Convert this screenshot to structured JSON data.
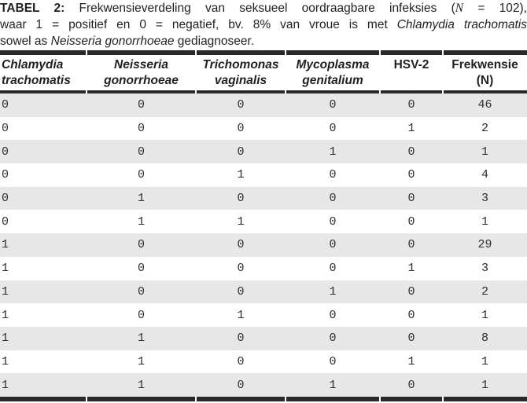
{
  "colors": {
    "ink": "#231f20",
    "rule": "#2b282b",
    "row_shade": "#e8e7e8",
    "background": "#ffffff"
  },
  "caption": {
    "lines": [
      [
        {
          "t": "TABEL 2:",
          "s": "b"
        },
        {
          "t": " Frekwensieverdeling van seksueel oordraagbare infeksies (",
          "s": "n"
        },
        {
          "t": "N",
          "s": "mi"
        },
        {
          "t": " = 102),",
          "s": "n"
        }
      ],
      [
        {
          "t": "waar 1 = positief en 0 = negatief, bv. 8% van vroue is met ",
          "s": "n"
        },
        {
          "t": "Chlamydia trachomatis",
          "s": "i"
        }
      ],
      [
        {
          "t": "sowel as ",
          "s": "n"
        },
        {
          "t": "Neisseria gonorrhoeae",
          "s": "i"
        },
        {
          "t": " gediagnoseer.",
          "s": "n"
        }
      ]
    ]
  },
  "table": {
    "columns": [
      {
        "lines": [
          "Chlamydia",
          "trachomatis"
        ],
        "italic": true,
        "align": "left"
      },
      {
        "lines": [
          "Neisseria",
          "gonorrhoeae"
        ],
        "italic": true,
        "align": "center"
      },
      {
        "lines": [
          "Trichomonas",
          "vaginalis"
        ],
        "italic": true,
        "align": "center"
      },
      {
        "lines": [
          "Mycoplasma",
          "genitalium"
        ],
        "italic": true,
        "align": "center"
      },
      {
        "lines": [
          "HSV-2"
        ],
        "italic": false,
        "align": "center"
      },
      {
        "lines": [
          "Frekwensie",
          "(N)"
        ],
        "italic": false,
        "align": "center"
      }
    ],
    "rows": [
      [
        0,
        0,
        0,
        0,
        0,
        46
      ],
      [
        0,
        0,
        0,
        0,
        1,
        2
      ],
      [
        0,
        0,
        0,
        1,
        0,
        1
      ],
      [
        0,
        0,
        1,
        0,
        0,
        4
      ],
      [
        0,
        1,
        0,
        0,
        0,
        3
      ],
      [
        0,
        1,
        1,
        0,
        0,
        1
      ],
      [
        1,
        0,
        0,
        0,
        0,
        29
      ],
      [
        1,
        0,
        0,
        0,
        1,
        3
      ],
      [
        1,
        0,
        0,
        1,
        0,
        2
      ],
      [
        1,
        0,
        1,
        0,
        0,
        1
      ],
      [
        1,
        1,
        0,
        0,
        0,
        8
      ],
      [
        1,
        1,
        0,
        0,
        1,
        1
      ],
      [
        1,
        1,
        0,
        1,
        0,
        1
      ]
    ],
    "total_n": 102
  }
}
